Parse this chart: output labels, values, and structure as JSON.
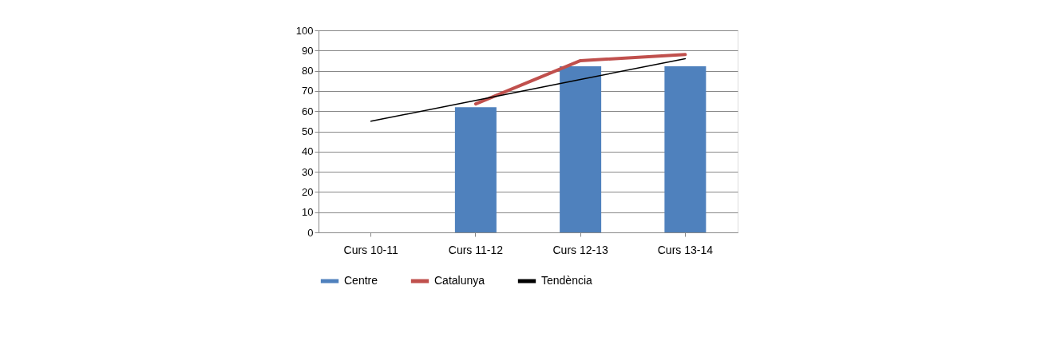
{
  "chart_data": {
    "type": "bar",
    "categories": [
      "Curs 10-11",
      "Curs 11-12",
      "Curs 12-13",
      "Curs 13-14"
    ],
    "series": [
      {
        "name": "Centre",
        "color": "#4f81bd",
        "values": [
          null,
          62,
          82.2,
          82.2
        ]
      },
      {
        "name": "Catalunya",
        "type": "line",
        "color": "#c0504d",
        "values": [
          null,
          63.6,
          85,
          88
        ]
      },
      {
        "name": "Tendència",
        "type": "line",
        "color": "#000000",
        "values": [
          55,
          65.3,
          75.7,
          86
        ]
      }
    ],
    "ylim": [
      0,
      100
    ],
    "yticks": [
      0,
      10,
      20,
      30,
      40,
      50,
      60,
      70,
      80,
      90,
      100
    ],
    "grid": "y",
    "legend": "bottom"
  }
}
